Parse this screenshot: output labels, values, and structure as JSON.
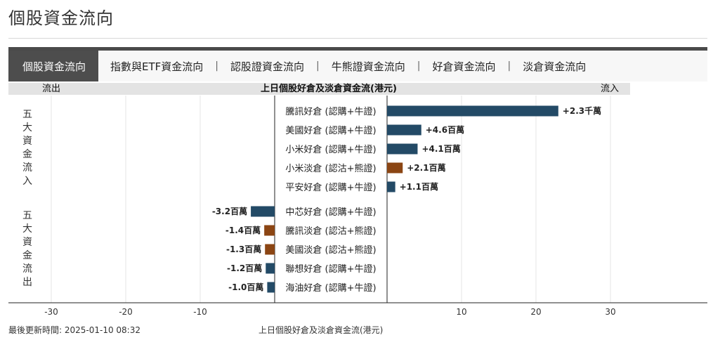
{
  "page": {
    "title": "個股資金流向"
  },
  "tabs": [
    {
      "label": "個股資金流向",
      "active": true
    },
    {
      "label": "指數與ETF資金流向",
      "active": false
    },
    {
      "label": "認股證資金流向",
      "active": false
    },
    {
      "label": "牛熊證資金流向",
      "active": false
    },
    {
      "label": "好倉資金流向",
      "active": false
    },
    {
      "label": "淡倉資金流向",
      "active": false
    }
  ],
  "tab_separator": "|",
  "chart_header": {
    "left": "流出",
    "center": "上日個股好倉及淡倉資金流(港元)",
    "right": "流入"
  },
  "groups": {
    "inflow": "五大資金流入",
    "outflow": "五大資金流出"
  },
  "colors": {
    "long": "#234a66",
    "short": "#8b4513",
    "grid": "#e6e6e6",
    "axis": "#222222"
  },
  "chart_data": {
    "type": "bar",
    "orientation": "horizontal",
    "title": "上日個股好倉及淡倉資金流(港元)",
    "x_unit": "百萬",
    "xlim": [
      -35,
      35
    ],
    "xticks": [
      -30,
      -20,
      -10,
      10,
      20,
      30
    ],
    "grid": true,
    "series_legend": {
      "long": "好倉",
      "short": "淡倉"
    },
    "bars": [
      {
        "group": "inflow",
        "label": "騰訊好倉 (認購+牛證)",
        "value": 23,
        "side": "long",
        "value_label": "+2.3千萬"
      },
      {
        "group": "inflow",
        "label": "美國好倉 (認購+牛證)",
        "value": 4.6,
        "side": "long",
        "value_label": "+4.6百萬"
      },
      {
        "group": "inflow",
        "label": "小米好倉 (認購+牛證)",
        "value": 4.1,
        "side": "long",
        "value_label": "+4.1百萬"
      },
      {
        "group": "inflow",
        "label": "小米淡倉 (認沽+熊證)",
        "value": 2.1,
        "side": "short",
        "value_label": "+2.1百萬"
      },
      {
        "group": "inflow",
        "label": "平安好倉 (認購+牛證)",
        "value": 1.1,
        "side": "long",
        "value_label": "+1.1百萬"
      },
      {
        "group": "outflow",
        "label": "中芯好倉 (認購+牛證)",
        "value": -3.2,
        "side": "long",
        "value_label": "-3.2百萬"
      },
      {
        "group": "outflow",
        "label": "騰訊淡倉 (認沽+熊證)",
        "value": -1.4,
        "side": "short",
        "value_label": "-1.4百萬"
      },
      {
        "group": "outflow",
        "label": "美國淡倉 (認沽+熊證)",
        "value": -1.3,
        "side": "short",
        "value_label": "-1.3百萬"
      },
      {
        "group": "outflow",
        "label": "聯想好倉 (認購+牛證)",
        "value": -1.2,
        "side": "long",
        "value_label": "-1.2百萬"
      },
      {
        "group": "outflow",
        "label": "海油好倉 (認購+牛證)",
        "value": -1.0,
        "side": "long",
        "value_label": "-1.0百萬"
      }
    ]
  },
  "footer": {
    "updated": "最後更新時間: 2025-01-10 08:32",
    "caption": "上日個股好倉及淡倉資金流(港元)"
  }
}
